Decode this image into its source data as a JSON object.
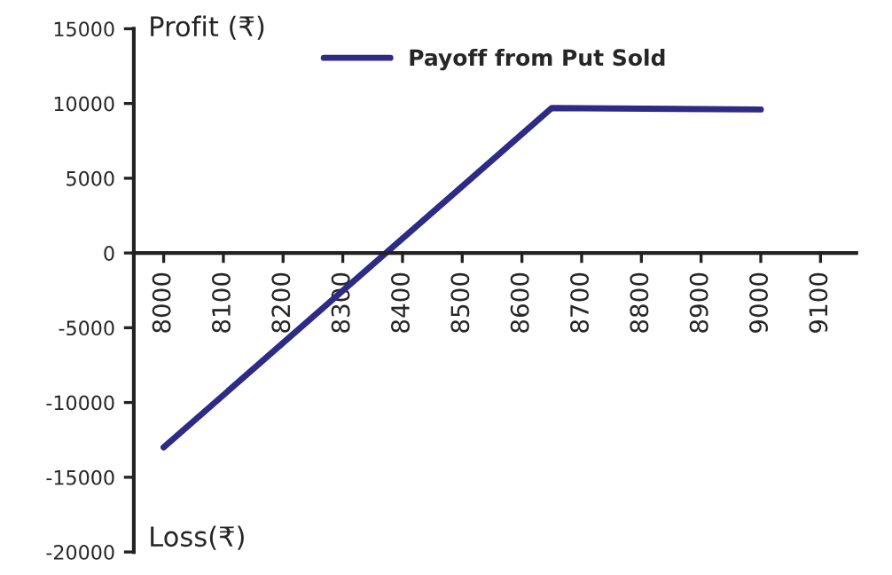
{
  "chart_data": {
    "type": "line",
    "ylabel": "Profit (₹)",
    "annotations": [
      "Loss(₹)"
    ],
    "series": [
      {
        "name": "Payoff from Put Sold",
        "color": "#2e2a86",
        "x": [
          8000,
          8650,
          9000
        ],
        "values": [
          -13000,
          9700,
          9600
        ]
      }
    ],
    "xlim": [
      7950,
      9160
    ],
    "xticks": [
      8000,
      8100,
      8200,
      8300,
      8400,
      8500,
      8600,
      8700,
      8800,
      8900,
      9000,
      9100
    ],
    "ylim": [
      -20000,
      15000
    ],
    "yticks": [
      -20000,
      -15000,
      -10000,
      -5000,
      0,
      5000,
      10000,
      15000
    ],
    "grid": false,
    "legend": "top",
    "marker": "none",
    "line_style": "solid"
  }
}
